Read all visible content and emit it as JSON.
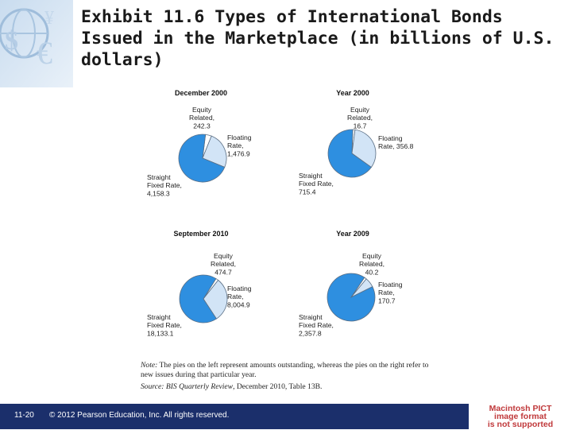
{
  "title": "Exhibit 11.6  Types of International Bonds Issued in the Marketplace (in billions of U.S. dollars)",
  "chart_data": [
    {
      "type": "pie",
      "title": "December 2000",
      "slices": [
        {
          "name": "Equity Related,",
          "value": 242.3,
          "label_lines": [
            "Equity",
            "Related,",
            "242.3"
          ]
        },
        {
          "name": "Floating Rate,",
          "value": 1476.9,
          "label_lines": [
            "Floating",
            "Rate,",
            "1,476.9"
          ]
        },
        {
          "name": "Straight Fixed Rate,",
          "value": 4158.3,
          "label_lines": [
            "Straight",
            "Fixed Rate,",
            "4,158.3"
          ]
        }
      ]
    },
    {
      "type": "pie",
      "title": "Year 2000",
      "slices": [
        {
          "name": "Equity Related,",
          "value": 16.7,
          "label_lines": [
            "Equity",
            "Related,",
            "16.7"
          ]
        },
        {
          "name": "Floating Rate,",
          "value": 356.8,
          "label_lines": [
            "Floating",
            "Rate, 356.8"
          ]
        },
        {
          "name": "Straight Fixed Rate,",
          "value": 715.4,
          "label_lines": [
            "Straight",
            "Fixed Rate,",
            "715.4"
          ]
        }
      ]
    },
    {
      "type": "pie",
      "title": "September 2010",
      "slices": [
        {
          "name": "Equity Related,",
          "value": 474.7,
          "label_lines": [
            "Equity",
            "Related,",
            "474.7"
          ]
        },
        {
          "name": "Floating Rate,",
          "value": 8004.9,
          "label_lines": [
            "Floating",
            "Rate,",
            "8,004.9"
          ]
        },
        {
          "name": "Straight Fixed Rate,",
          "value": 18133.1,
          "label_lines": [
            "Straight",
            "Fixed Rate,",
            "18,133.1"
          ]
        }
      ]
    },
    {
      "type": "pie",
      "title": "Year 2009",
      "slices": [
        {
          "name": "Equity Related,",
          "value": 40.2,
          "label_lines": [
            "Equity",
            "Related,",
            "40.2"
          ]
        },
        {
          "name": "Floating Rate,",
          "value": 170.7,
          "label_lines": [
            "Floating",
            "Rate,",
            "170.7"
          ]
        },
        {
          "name": "Straight Fixed Rate,",
          "value": 2357.8,
          "label_lines": [
            "Straight",
            "Fixed Rate,",
            "2,357.8"
          ]
        }
      ]
    }
  ],
  "colors": {
    "straight": "#2e8fe0",
    "floating": "#d2e4f6",
    "equity": "#ffffff",
    "stroke": "#5a6e84",
    "footer": "#1b2f6b",
    "pict_text": "#c0393b"
  },
  "note": {
    "label": "Note:",
    "text": " The pies on the left represent amounts outstanding, whereas the pies on the right refer to new issues during that particular year."
  },
  "source": {
    "label": "Source: BIS Quarterly Review",
    "text": ", December 2010, Table 13B."
  },
  "footer": {
    "page_number": "11-20",
    "copyright": "© 2012 Pearson Education, Inc. All rights reserved."
  },
  "placeholder": {
    "line1": "Macintosh PICT",
    "line2": "image format",
    "line3": "is not supported"
  }
}
